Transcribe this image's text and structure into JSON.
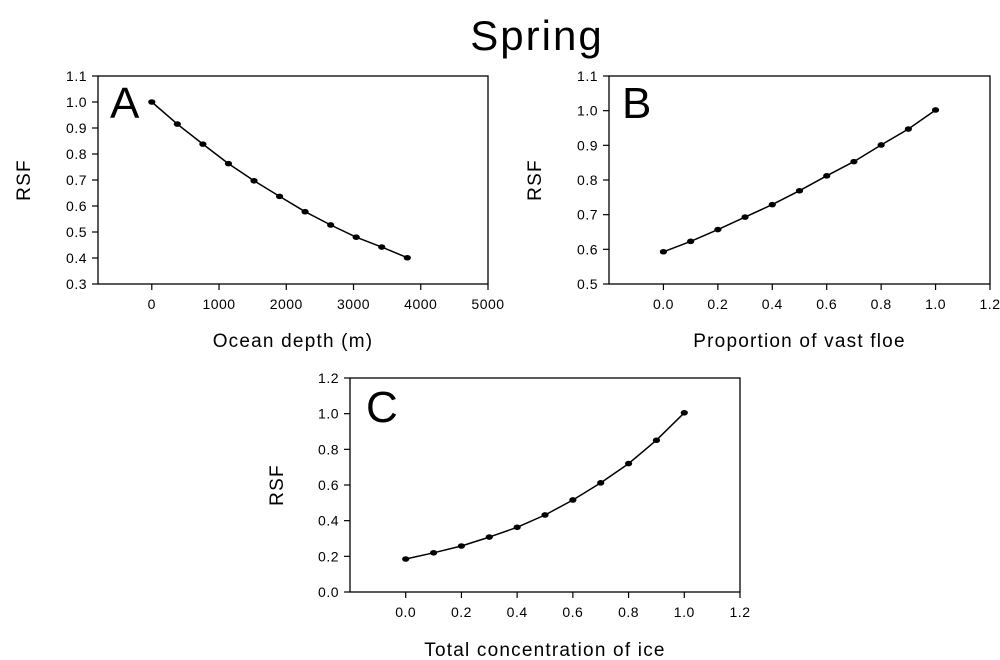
{
  "title": "Spring",
  "colors": {
    "line": "#000000",
    "point": "#000000",
    "axis": "#000000",
    "background": "#ffffff"
  },
  "chart_data": [
    {
      "type": "line",
      "panel": "A",
      "title": "",
      "xlabel": "Ocean depth (m)",
      "ylabel": "RSF",
      "xlim": [
        -800,
        5000
      ],
      "ylim": [
        0.3,
        1.1
      ],
      "xticks": [
        "0",
        "1000",
        "2000",
        "3000",
        "4000",
        "5000"
      ],
      "yticks": [
        "0.3",
        "0.4",
        "0.5",
        "0.6",
        "0.7",
        "0.8",
        "0.9",
        "1.0",
        "1.1"
      ],
      "grid": false,
      "legend": "none",
      "x": [
        0,
        380,
        760,
        1140,
        1520,
        1900,
        2280,
        2660,
        3040,
        3420,
        3800
      ],
      "y": [
        1.0,
        0.915,
        0.838,
        0.763,
        0.697,
        0.637,
        0.578,
        0.527,
        0.48,
        0.442,
        0.401
      ]
    },
    {
      "type": "line",
      "panel": "B",
      "title": "",
      "xlabel": "Proportion of vast floe",
      "ylabel": "RSF",
      "xlim": [
        -0.2,
        1.2
      ],
      "ylim": [
        0.5,
        1.1
      ],
      "xticks": [
        "0.0",
        "0.2",
        "0.4",
        "0.6",
        "0.8",
        "1.0",
        "1.2"
      ],
      "yticks": [
        "0.5",
        "0.6",
        "0.7",
        "0.8",
        "0.9",
        "1.0",
        "1.1"
      ],
      "grid": false,
      "legend": "none",
      "x": [
        0,
        0.1,
        0.2,
        0.3,
        0.4,
        0.5,
        0.6,
        0.7,
        0.8,
        0.9,
        1.0
      ],
      "y": [
        0.593,
        0.623,
        0.657,
        0.693,
        0.729,
        0.769,
        0.812,
        0.853,
        0.901,
        0.947,
        1.002
      ]
    },
    {
      "type": "line",
      "panel": "C",
      "title": "",
      "xlabel": "Total concentration of ice",
      "ylabel": "RSF",
      "xlim": [
        -0.2,
        1.2
      ],
      "ylim": [
        0.0,
        1.2
      ],
      "xticks": [
        "0.0",
        "0.2",
        "0.4",
        "0.6",
        "0.8",
        "1.0",
        "1.2"
      ],
      "yticks": [
        "0.0",
        "0.2",
        "0.4",
        "0.6",
        "0.8",
        "1.0",
        "1.2"
      ],
      "grid": false,
      "legend": "none",
      "x": [
        0,
        0.1,
        0.2,
        0.3,
        0.4,
        0.5,
        0.6,
        0.7,
        0.8,
        0.9,
        1.0
      ],
      "y": [
        0.185,
        0.22,
        0.258,
        0.308,
        0.363,
        0.432,
        0.516,
        0.612,
        0.72,
        0.851,
        1.005
      ]
    }
  ]
}
